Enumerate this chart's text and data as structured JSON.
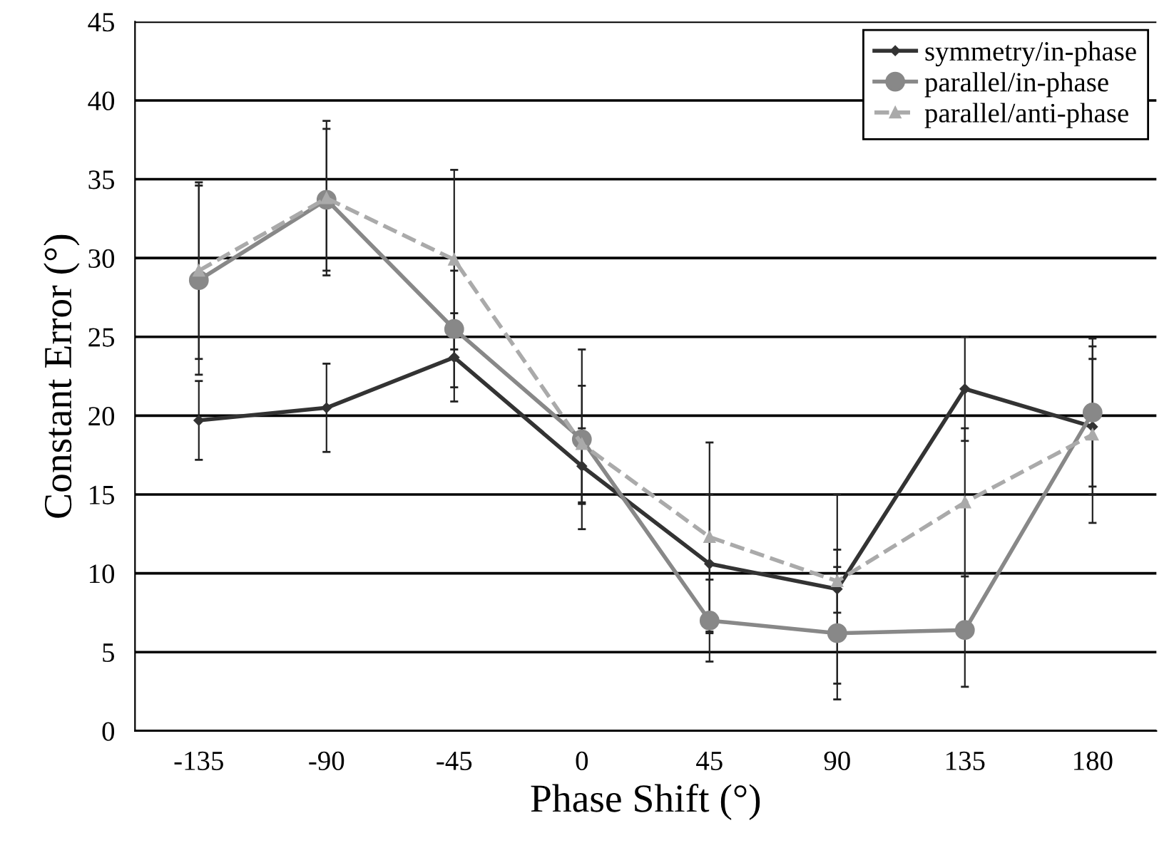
{
  "chart_data": {
    "type": "line",
    "xlabel": "Phase Shift (°)",
    "ylabel": "Constant Error (°)",
    "categories": [
      "-135",
      "-90",
      "-45",
      "0",
      "45",
      "90",
      "135",
      "180"
    ],
    "series": [
      {
        "name": "symmetry/in-phase",
        "color": "#333333",
        "marker": "diamond",
        "line_style": "solid",
        "values": [
          19.7,
          20.5,
          23.7,
          16.8,
          10.6,
          9.0,
          21.7,
          19.3
        ],
        "errors": [
          2.5,
          2.8,
          2.8,
          2.4,
          4.4,
          6.0,
          3.3,
          4.3
        ]
      },
      {
        "name": "parallel/in-phase",
        "color": "#888888",
        "marker": "circle",
        "line_style": "solid",
        "values": [
          28.6,
          33.7,
          25.5,
          18.5,
          7.0,
          6.2,
          6.4,
          20.2
        ],
        "errors": [
          6.0,
          4.5,
          3.7,
          5.7,
          2.6,
          4.2,
          3.6,
          4.7
        ]
      },
      {
        "name": "parallel/anti-phase",
        "color": "#aaaaaa",
        "marker": "triangle",
        "line_style": "dashed",
        "values": [
          29.2,
          33.8,
          29.9,
          18.2,
          12.3,
          9.5,
          14.5,
          18.8
        ],
        "errors": [
          5.6,
          4.9,
          5.7,
          3.7,
          6.0,
          2.0,
          4.7,
          5.6
        ]
      }
    ],
    "ylim": [
      0,
      45
    ],
    "yticks": [
      0,
      5,
      10,
      15,
      20,
      25,
      30,
      35,
      40,
      45
    ],
    "grid": "y",
    "legend": "top right"
  }
}
